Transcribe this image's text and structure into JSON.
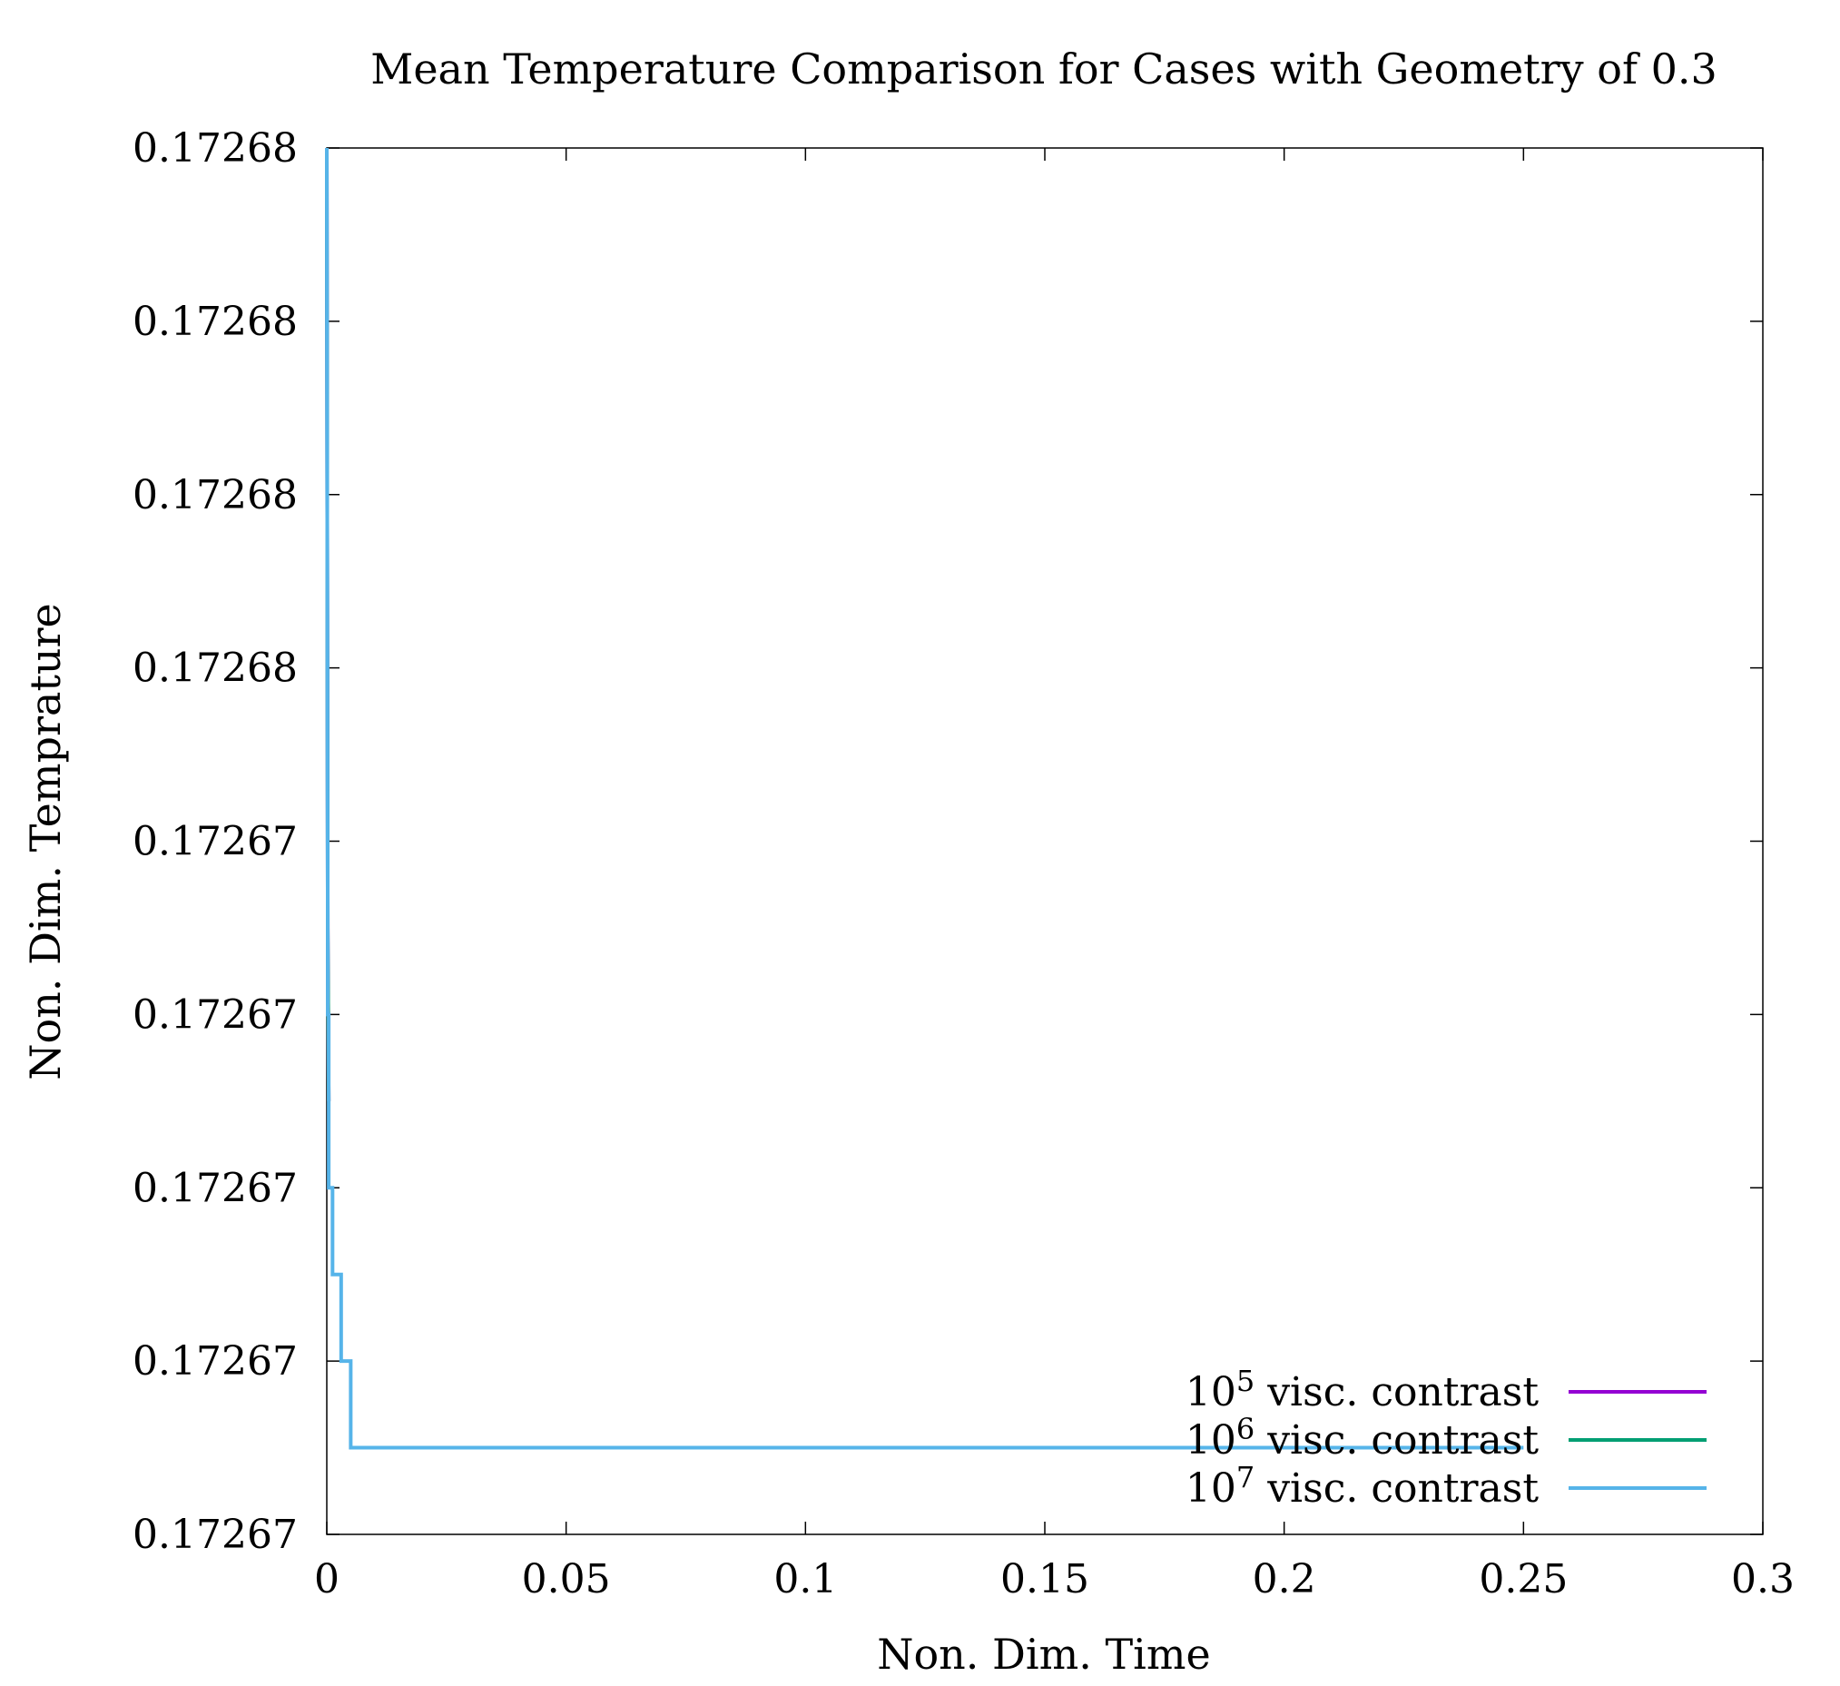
{
  "chart_data": {
    "type": "line",
    "title": "Mean Temperature Comparison for Cases with Geometry of 0.3",
    "xlabel": "Non. Dim. Time",
    "ylabel": "Non. Dim. Temprature",
    "xlim": [
      0,
      0.3
    ],
    "ylim": [
      0,
      8
    ],
    "x_ticks": [
      {
        "value": 0,
        "label": "0"
      },
      {
        "value": 0.05,
        "label": "0.05"
      },
      {
        "value": 0.1,
        "label": "0.1"
      },
      {
        "value": 0.15,
        "label": "0.15"
      },
      {
        "value": 0.2,
        "label": "0.2"
      },
      {
        "value": 0.25,
        "label": "0.25"
      },
      {
        "value": 0.3,
        "label": "0.3"
      }
    ],
    "y_ticks": [
      {
        "value": 0,
        "label": "0.17267"
      },
      {
        "value": 1,
        "label": "0.17267"
      },
      {
        "value": 2,
        "label": "0.17267"
      },
      {
        "value": 3,
        "label": "0.17267"
      },
      {
        "value": 4,
        "label": "0.17267"
      },
      {
        "value": 5,
        "label": "0.17268"
      },
      {
        "value": 6,
        "label": "0.17268"
      },
      {
        "value": 7,
        "label": "0.17268"
      },
      {
        "value": 8,
        "label": "0.17268"
      }
    ],
    "grid": false,
    "legend_position": "bottom-right",
    "series": [
      {
        "name": "10^5 visc. contrast",
        "legend_base": "10",
        "legend_exp": "5",
        "legend_text": " visc. contrast",
        "color": "#9400d3",
        "x": [
          0,
          0.0002,
          0.0004
        ],
        "y": [
          8,
          3.5,
          2.5
        ]
      },
      {
        "name": "10^6 visc. contrast",
        "legend_base": "10",
        "legend_exp": "6",
        "legend_text": " visc. contrast",
        "color": "#009e73",
        "x": [
          0,
          0.0002,
          0.0004
        ],
        "y": [
          8,
          3.5,
          2.5
        ]
      },
      {
        "name": "10^7 visc. contrast",
        "legend_base": "10",
        "legend_exp": "7",
        "legend_text": " visc. contrast",
        "color": "#56b4e9",
        "x": [
          0,
          0.0002,
          0.0002,
          0.0004,
          0.0004,
          0.0012,
          0.0012,
          0.003,
          0.003,
          0.005,
          0.005,
          0.25
        ],
        "y": [
          8,
          3.5,
          3.0,
          3.0,
          2.0,
          2.0,
          1.5,
          1.5,
          1.0,
          1.0,
          0.5,
          0.5
        ]
      }
    ]
  }
}
